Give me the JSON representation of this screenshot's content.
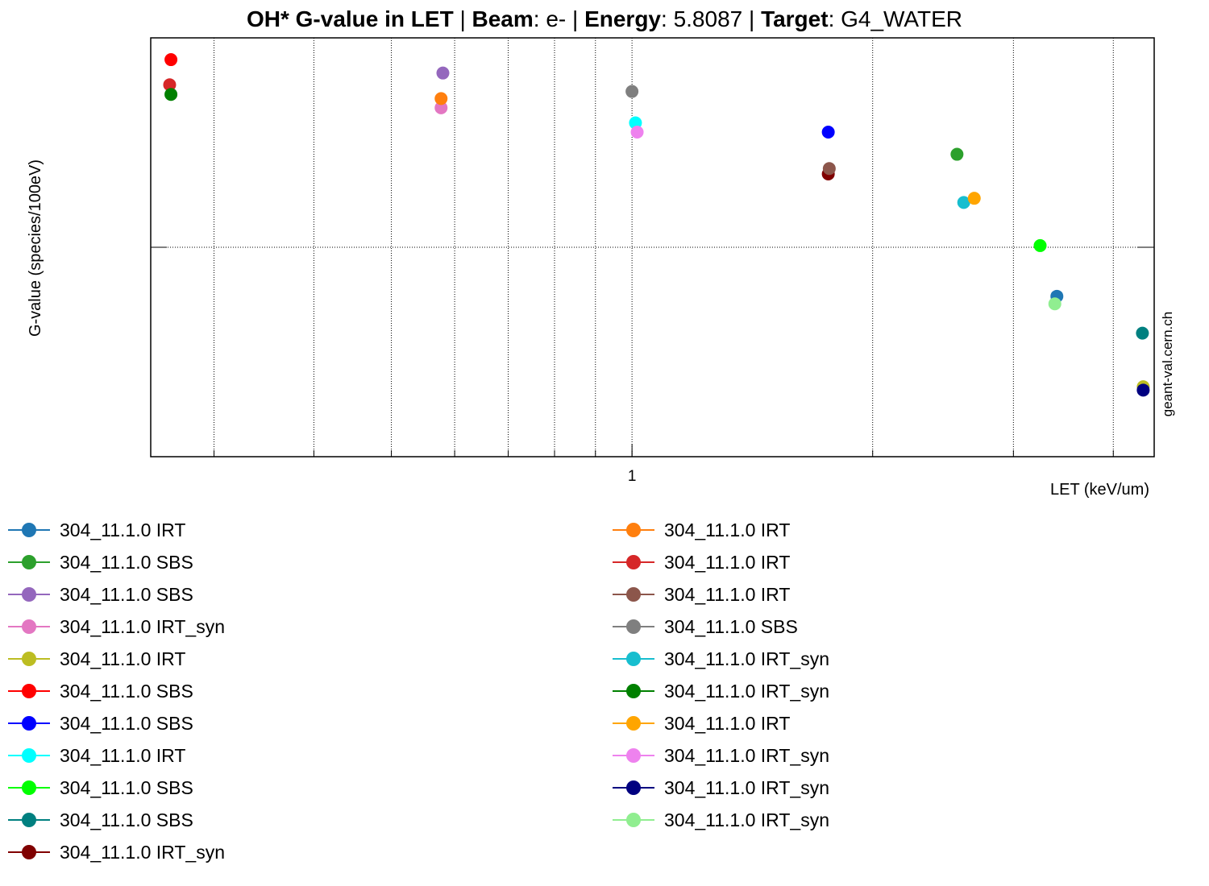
{
  "title": {
    "main": "OH* G-value in LET",
    "sep1": " | ",
    "beam_key": "Beam",
    "beam_value": ": e- ",
    "sep2": "| ",
    "energy_key": "Energy",
    "energy_value": ": 5.8087 ",
    "sep3": "| ",
    "target_key": "Target",
    "target_value": ": G4_WATER"
  },
  "watermark": "geant-val.cern.ch",
  "chart_data": {
    "type": "scatter",
    "xlabel": "LET (keV/um)",
    "ylabel": "G-value (species/100eV)",
    "x_scale": "log",
    "xlim": [
      0.25,
      4.5
    ],
    "ylim": [
      0,
      1
    ],
    "x_tick_labels": [
      {
        "value": 1,
        "label": "1"
      }
    ],
    "grid": true,
    "legend_placement": "below",
    "series": [
      {
        "name": "304_11.1.0 IRT",
        "color": "#1f77b4",
        "points": [
          [
            3.4,
            0.383
          ]
        ]
      },
      {
        "name": "304_11.1.0 SBS",
        "color": "#2ca02c",
        "points": [
          [
            2.55,
            0.722
          ]
        ]
      },
      {
        "name": "304_11.1.0 SBS",
        "color": "#9467bd",
        "points": [
          [
            0.58,
            0.916
          ]
        ]
      },
      {
        "name": "304_11.1.0 IRT_syn",
        "color": "#e377c2",
        "points": [
          [
            0.577,
            0.833
          ]
        ]
      },
      {
        "name": "304_11.1.0 IRT",
        "color": "#bcbd22",
        "points": [
          [
            4.36,
            0.167
          ]
        ]
      },
      {
        "name": "304_11.1.0 SBS",
        "color": "#ff0000",
        "points": [
          [
            0.265,
            0.948
          ]
        ]
      },
      {
        "name": "304_11.1.0 SBS",
        "color": "#0000ff",
        "points": [
          [
            1.76,
            0.775
          ]
        ]
      },
      {
        "name": "304_11.1.0 IRT",
        "color": "#00ffff",
        "points": [
          [
            1.01,
            0.797
          ]
        ]
      },
      {
        "name": "304_11.1.0 SBS",
        "color": "#00ff00",
        "points": [
          [
            3.24,
            0.504
          ]
        ]
      },
      {
        "name": "304_11.1.0 SBS",
        "color": "#008080",
        "points": [
          [
            4.35,
            0.295
          ]
        ]
      },
      {
        "name": "304_11.1.0 IRT_syn",
        "color": "#800000",
        "points": [
          [
            1.76,
            0.675
          ]
        ]
      },
      {
        "name": "304_11.1.0 IRT",
        "color": "#ff7f0e",
        "points": [
          [
            0.577,
            0.855
          ]
        ]
      },
      {
        "name": "304_11.1.0 IRT",
        "color": "#d62728",
        "points": [
          [
            0.264,
            0.888
          ]
        ]
      },
      {
        "name": "304_11.1.0 IRT",
        "color": "#8c564b",
        "points": [
          [
            1.765,
            0.688
          ]
        ]
      },
      {
        "name": "304_11.1.0 SBS",
        "color": "#7f7f7f",
        "points": [
          [
            1.0,
            0.872
          ]
        ]
      },
      {
        "name": "304_11.1.0 IRT_syn",
        "color": "#17becf",
        "points": [
          [
            2.6,
            0.607
          ]
        ]
      },
      {
        "name": "304_11.1.0 IRT_syn",
        "color": "#008000",
        "points": [
          [
            0.265,
            0.865
          ]
        ]
      },
      {
        "name": "304_11.1.0 IRT",
        "color": "#ffa500",
        "points": [
          [
            2.68,
            0.617
          ]
        ]
      },
      {
        "name": "304_11.1.0 IRT_syn",
        "color": "#ee82ee",
        "points": [
          [
            1.015,
            0.775
          ]
        ]
      },
      {
        "name": "304_11.1.0 IRT_syn",
        "color": "#000080",
        "points": [
          [
            4.36,
            0.159
          ]
        ]
      },
      {
        "name": "304_11.1.0 IRT_syn",
        "color": "#90ee90",
        "points": [
          [
            3.38,
            0.365
          ]
        ]
      }
    ]
  }
}
